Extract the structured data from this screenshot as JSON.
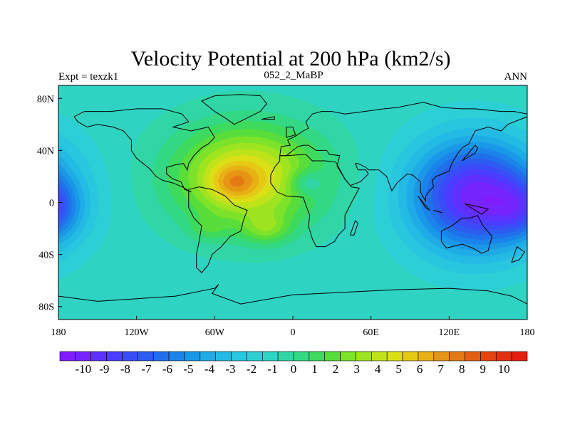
{
  "chart_data": {
    "type": "heatmap",
    "title": "Velocity Potential at 200 hPa (km2/s)",
    "left_label": "Expt = texzk1",
    "center_label": "052_2_MaBP",
    "right_label": "ANN",
    "x_ticks": [
      "180",
      "120W",
      "60W",
      "0",
      "60E",
      "120E",
      "180"
    ],
    "y_ticks": [
      "80N",
      "40N",
      "0",
      "40S",
      "80S"
    ],
    "xlim": [
      -180,
      180
    ],
    "ylim": [
      -90,
      90
    ],
    "colorbar": {
      "labels": [
        "-10",
        "-9",
        "-8",
        "-7",
        "-6",
        "-5",
        "-4",
        "-3",
        "-2",
        "-1",
        "0",
        "1",
        "2",
        "3",
        "4",
        "5",
        "6",
        "7",
        "8",
        "9",
        "10"
      ],
      "min": -10.5,
      "max": 10.5,
      "step": 0.5,
      "colors": [
        "#7f1dff",
        "#7725ff",
        "#6030ff",
        "#4b3cff",
        "#3a4cf7",
        "#2c5cf0",
        "#2070ec",
        "#1b84ea",
        "#1a98e8",
        "#1eabe6",
        "#23bbe3",
        "#28c6df",
        "#2ccfd5",
        "#2ed3c2",
        "#30d6a6",
        "#33d885",
        "#3dda5e",
        "#58dd3a",
        "#7ce22a",
        "#9ee420",
        "#bfe31a",
        "#dbe016",
        "#e6c914",
        "#e7b014",
        "#e69514",
        "#e57a14",
        "#e35e12",
        "#e34410",
        "#e5300f",
        "#e51e0e"
      ]
    },
    "field_sources": [
      {
        "lon": -35,
        "lat": 20,
        "amp": 6.0,
        "slon": 55,
        "slat": 38
      },
      {
        "lon": -45,
        "lat": 15,
        "amp": 2.5,
        "slon": 18,
        "slat": 14
      },
      {
        "lon": -20,
        "lat": -20,
        "amp": 2.2,
        "slon": 18,
        "slat": 12
      },
      {
        "lon": -65,
        "lat": -20,
        "amp": 1.2,
        "slon": 15,
        "slat": 10
      },
      {
        "lon": 10,
        "lat": 15,
        "amp": -2.0,
        "slon": 14,
        "slat": 10
      },
      {
        "lon": 140,
        "lat": 5,
        "amp": -8.5,
        "slon": 48,
        "slat": 42
      },
      {
        "lon": 175,
        "lat": -5,
        "amp": -3.0,
        "slon": 22,
        "slat": 22
      }
    ],
    "field_offset": -1.0,
    "land_outlines": [
      [
        [
          -168,
          66
        ],
        [
          -160,
          70
        ],
        [
          -140,
          70
        ],
        [
          -120,
          72
        ],
        [
          -100,
          72
        ],
        [
          -85,
          68
        ],
        [
          -80,
          62
        ],
        [
          -92,
          58
        ],
        [
          -78,
          55
        ],
        [
          -65,
          58
        ],
        [
          -60,
          50
        ],
        [
          -65,
          45
        ],
        [
          -70,
          42
        ],
        [
          -76,
          36
        ],
        [
          -80,
          30
        ],
        [
          -81,
          25
        ],
        [
          -84,
          30
        ],
        [
          -90,
          29
        ],
        [
          -97,
          27
        ],
        [
          -97,
          22
        ],
        [
          -92,
          18
        ],
        [
          -86,
          16
        ],
        [
          -83,
          10
        ],
        [
          -78,
          8
        ],
        [
          -85,
          12
        ],
        [
          -92,
          15
        ],
        [
          -100,
          17
        ],
        [
          -105,
          20
        ],
        [
          -110,
          26
        ],
        [
          -115,
          30
        ],
        [
          -120,
          34
        ],
        [
          -124,
          40
        ],
        [
          -124,
          48
        ],
        [
          -130,
          55
        ],
        [
          -138,
          58
        ],
        [
          -150,
          60
        ],
        [
          -158,
          58
        ],
        [
          -165,
          62
        ],
        [
          -168,
          66
        ]
      ],
      [
        [
          -80,
          10
        ],
        [
          -72,
          12
        ],
        [
          -62,
          10
        ],
        [
          -52,
          5
        ],
        [
          -45,
          -2
        ],
        [
          -35,
          -6
        ],
        [
          -38,
          -14
        ],
        [
          -40,
          -22
        ],
        [
          -48,
          -26
        ],
        [
          -55,
          -34
        ],
        [
          -62,
          -40
        ],
        [
          -65,
          -48
        ],
        [
          -70,
          -54
        ],
        [
          -74,
          -50
        ],
        [
          -74,
          -40
        ],
        [
          -72,
          -30
        ],
        [
          -70,
          -18
        ],
        [
          -76,
          -12
        ],
        [
          -80,
          -4
        ],
        [
          -80,
          10
        ]
      ],
      [
        [
          -45,
          60
        ],
        [
          -35,
          65
        ],
        [
          -25,
          70
        ],
        [
          -20,
          76
        ],
        [
          -25,
          82
        ],
        [
          -40,
          83
        ],
        [
          -60,
          82
        ],
        [
          -70,
          78
        ],
        [
          -60,
          70
        ],
        [
          -52,
          65
        ],
        [
          -45,
          60
        ]
      ],
      [
        [
          -10,
          36
        ],
        [
          -5,
          36
        ],
        [
          10,
          37
        ],
        [
          15,
          32
        ],
        [
          25,
          32
        ],
        [
          33,
          31
        ],
        [
          40,
          18
        ],
        [
          45,
          12
        ],
        [
          51,
          11
        ],
        [
          45,
          0
        ],
        [
          40,
          -10
        ],
        [
          40,
          -20
        ],
        [
          35,
          -25
        ],
        [
          32,
          -30
        ],
        [
          25,
          -34
        ],
        [
          18,
          -34
        ],
        [
          15,
          -28
        ],
        [
          12,
          -18
        ],
        [
          13,
          -10
        ],
        [
          10,
          -2
        ],
        [
          8,
          4
        ],
        [
          -5,
          5
        ],
        [
          -12,
          8
        ],
        [
          -17,
          15
        ],
        [
          -17,
          21
        ],
        [
          -14,
          27
        ],
        [
          -10,
          32
        ],
        [
          -10,
          36
        ]
      ],
      [
        [
          -10,
          36
        ],
        [
          -9,
          43
        ],
        [
          -2,
          44
        ],
        [
          -4,
          48
        ],
        [
          2,
          51
        ],
        [
          8,
          55
        ],
        [
          12,
          57
        ],
        [
          10,
          62
        ],
        [
          15,
          68
        ],
        [
          22,
          70
        ],
        [
          30,
          70
        ],
        [
          40,
          68
        ],
        [
          55,
          70
        ],
        [
          70,
          72
        ],
        [
          80,
          73
        ],
        [
          100,
          77
        ],
        [
          115,
          73
        ],
        [
          130,
          72
        ],
        [
          140,
          72
        ],
        [
          160,
          70
        ],
        [
          170,
          70
        ],
        [
          180,
          68
        ],
        [
          180,
          66
        ],
        [
          175,
          64
        ],
        [
          165,
          60
        ],
        [
          160,
          55
        ],
        [
          150,
          58
        ],
        [
          140,
          55
        ],
        [
          135,
          45
        ],
        [
          130,
          42
        ],
        [
          127,
          38
        ],
        [
          125,
          35
        ],
        [
          122,
          30
        ],
        [
          120,
          24
        ],
        [
          110,
          20
        ],
        [
          107,
          17
        ],
        [
          108,
          12
        ],
        [
          105,
          9
        ],
        [
          102,
          5
        ],
        [
          102,
          1
        ],
        [
          98,
          8
        ],
        [
          98,
          16
        ],
        [
          92,
          21
        ],
        [
          88,
          22
        ],
        [
          80,
          15
        ],
        [
          76,
          9
        ],
        [
          72,
          20
        ],
        [
          66,
          25
        ],
        [
          58,
          25
        ],
        [
          56,
          27
        ],
        [
          50,
          30
        ],
        [
          48,
          30
        ],
        [
          50,
          25
        ],
        [
          56,
          25
        ],
        [
          58,
          22
        ],
        [
          52,
          16
        ],
        [
          44,
          13
        ],
        [
          40,
          18
        ],
        [
          34,
          28
        ],
        [
          36,
          36
        ],
        [
          28,
          37
        ],
        [
          26,
          40
        ],
        [
          22,
          40
        ],
        [
          18,
          40
        ],
        [
          12,
          44
        ],
        [
          8,
          44
        ],
        [
          4,
          43
        ],
        [
          0,
          40
        ],
        [
          -5,
          36
        ],
        [
          -10,
          36
        ]
      ],
      [
        [
          114,
          -22
        ],
        [
          122,
          -18
        ],
        [
          130,
          -12
        ],
        [
          136,
          -12
        ],
        [
          142,
          -10
        ],
        [
          146,
          -18
        ],
        [
          153,
          -26
        ],
        [
          150,
          -37
        ],
        [
          145,
          -39
        ],
        [
          138,
          -35
        ],
        [
          130,
          -32
        ],
        [
          118,
          -35
        ],
        [
          114,
          -30
        ],
        [
          114,
          -22
        ]
      ],
      [
        [
          -180,
          -72
        ],
        [
          -150,
          -76
        ],
        [
          -120,
          -74
        ],
        [
          -90,
          -72
        ],
        [
          -60,
          -66
        ],
        [
          -57,
          -63
        ],
        [
          -62,
          -70
        ],
        [
          -40,
          -78
        ],
        [
          0,
          -71
        ],
        [
          40,
          -69
        ],
        [
          80,
          -67
        ],
        [
          120,
          -66
        ],
        [
          150,
          -68
        ],
        [
          168,
          -72
        ],
        [
          180,
          -78
        ]
      ],
      [
        [
          -5,
          50
        ],
        [
          -5,
          58
        ],
        [
          0,
          58
        ],
        [
          2,
          52
        ],
        [
          -5,
          50
        ]
      ],
      [
        [
          130,
          32
        ],
        [
          135,
          35
        ],
        [
          140,
          38
        ],
        [
          142,
          42
        ],
        [
          140,
          44
        ],
        [
          135,
          38
        ],
        [
          130,
          32
        ]
      ],
      [
        [
          44,
          -25
        ],
        [
          48,
          -14
        ],
        [
          50,
          -16
        ],
        [
          47,
          -25
        ],
        [
          44,
          -25
        ]
      ],
      [
        [
          -24,
          64
        ],
        [
          -14,
          66
        ],
        [
          -14,
          64
        ],
        [
          -24,
          64
        ]
      ],
      [
        [
          172,
          -34
        ],
        [
          178,
          -38
        ],
        [
          174,
          -44
        ],
        [
          168,
          -46
        ],
        [
          172,
          -34
        ]
      ],
      [
        [
          96,
          5
        ],
        [
          105,
          -6
        ],
        [
          102,
          -4
        ],
        [
          96,
          5
        ]
      ],
      [
        [
          108,
          -6
        ],
        [
          115,
          -8
        ],
        [
          112,
          -7
        ],
        [
          108,
          -6
        ]
      ],
      [
        [
          132,
          -1
        ],
        [
          150,
          -5
        ],
        [
          145,
          -9
        ],
        [
          132,
          -1
        ]
      ]
    ]
  }
}
